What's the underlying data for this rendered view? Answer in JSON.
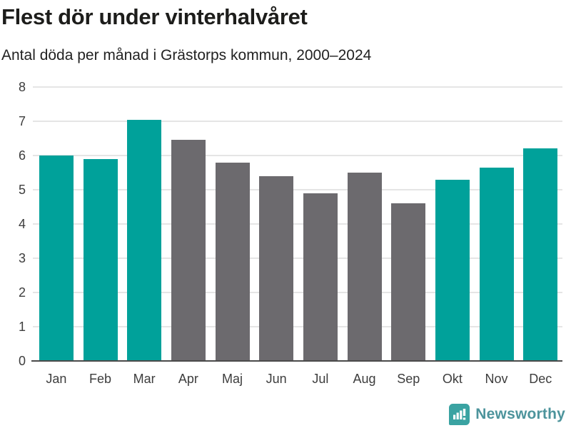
{
  "header": {
    "title": "Flest dör under vinterhalvåret",
    "subtitle": "Antal döda per månad i Grästorps kommun, 2000–2024"
  },
  "chart_data": {
    "type": "bar",
    "title": "Flest dör under vinterhalvåret",
    "subtitle": "Antal döda per månad i Grästorps kommun, 2000–2024",
    "categories": [
      "Jan",
      "Feb",
      "Mar",
      "Apr",
      "Maj",
      "Jun",
      "Jul",
      "Aug",
      "Sep",
      "Okt",
      "Nov",
      "Dec"
    ],
    "values": [
      6.0,
      5.9,
      7.05,
      6.45,
      5.8,
      5.4,
      4.9,
      5.5,
      4.6,
      5.3,
      5.65,
      6.2
    ],
    "bar_colors": [
      "#00a19a",
      "#00a19a",
      "#00a19a",
      "#6c6a6e",
      "#6c6a6e",
      "#6c6a6e",
      "#6c6a6e",
      "#6c6a6e",
      "#6c6a6e",
      "#00a19a",
      "#00a19a",
      "#00a19a"
    ],
    "xlabel": "",
    "ylabel": "",
    "ylim": [
      0,
      8
    ],
    "yticks": [
      0,
      1,
      2,
      3,
      4,
      5,
      6,
      7,
      8
    ],
    "grid": true,
    "legend_position": "none"
  },
  "colors": {
    "highlight_teal": "#00a19a",
    "neutral_gray": "#6c6a6e",
    "gridline": "#e5e5e5",
    "axis_line": "#4a4a4a",
    "tick_label": "#3d3d3d",
    "title_color": "#1d1d1b",
    "logo_icon_bg": "#3aa3a2",
    "logo_text_color": "#4d949c"
  },
  "footer": {
    "brand": "Newsworthy",
    "logo_icon": "bar-chart-speech-bubble-icon"
  }
}
